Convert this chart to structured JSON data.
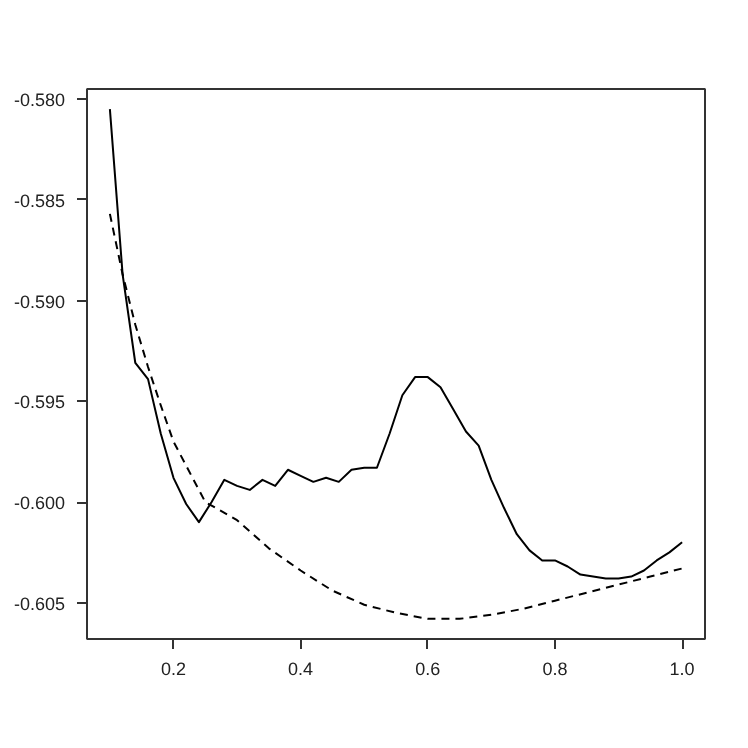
{
  "chart_data": {
    "type": "line",
    "grid": false,
    "xlim": [
      0.064,
      1.036
    ],
    "ylim": [
      -0.6068,
      -0.5795
    ],
    "xticks": [
      {
        "value": 0.2,
        "label": "0.2"
      },
      {
        "value": 0.4,
        "label": "0.4"
      },
      {
        "value": 0.6,
        "label": "0.6"
      },
      {
        "value": 0.8,
        "label": "0.8"
      },
      {
        "value": 1.0,
        "label": "1.0"
      }
    ],
    "yticks": [
      {
        "value": -0.58,
        "label": "-0.580"
      },
      {
        "value": -0.585,
        "label": "-0.585"
      },
      {
        "value": -0.59,
        "label": "-0.590"
      },
      {
        "value": -0.595,
        "label": "-0.595"
      },
      {
        "value": -0.6,
        "label": "-0.600"
      },
      {
        "value": -0.605,
        "label": "-0.605"
      }
    ],
    "series": [
      {
        "color": "#000000",
        "line_style": "solid",
        "x": [
          0.1,
          0.12,
          0.14,
          0.16,
          0.18,
          0.2,
          0.22,
          0.24,
          0.26,
          0.28,
          0.3,
          0.32,
          0.34,
          0.36,
          0.38,
          0.4,
          0.42,
          0.44,
          0.46,
          0.48,
          0.5,
          0.52,
          0.54,
          0.56,
          0.58,
          0.6,
          0.62,
          0.64,
          0.66,
          0.68,
          0.7,
          0.72,
          0.74,
          0.76,
          0.78,
          0.8,
          0.82,
          0.84,
          0.86,
          0.88,
          0.9,
          0.92,
          0.94,
          0.96,
          0.98,
          1.0
        ],
        "values": [
          -0.5805,
          -0.5887,
          -0.5931,
          -0.5939,
          -0.5966,
          -0.5988,
          -0.6001,
          -0.601,
          -0.6,
          -0.5989,
          -0.5992,
          -0.5994,
          -0.5989,
          -0.5992,
          -0.5984,
          -0.5987,
          -0.599,
          -0.5988,
          -0.599,
          -0.5984,
          -0.5983,
          -0.5983,
          -0.5966,
          -0.5947,
          -0.5938,
          -0.5938,
          -0.5943,
          -0.5954,
          -0.5965,
          -0.5972,
          -0.5989,
          -0.6003,
          -0.6016,
          -0.6024,
          -0.6029,
          -0.6029,
          -0.6032,
          -0.6036,
          -0.6037,
          -0.6038,
          -0.6038,
          -0.6037,
          -0.6034,
          -0.6029,
          -0.6025,
          -0.602
        ]
      },
      {
        "color": "#000000",
        "line_style": "dashed",
        "x": [
          0.1,
          0.12,
          0.14,
          0.16,
          0.18,
          0.2,
          0.25,
          0.3,
          0.35,
          0.4,
          0.45,
          0.5,
          0.55,
          0.6,
          0.65,
          0.7,
          0.75,
          0.8,
          0.85,
          0.9,
          0.95,
          1.0
        ],
        "values": [
          -0.5857,
          -0.5887,
          -0.5912,
          -0.5933,
          -0.5952,
          -0.597,
          -0.6,
          -0.6009,
          -0.6023,
          -0.6034,
          -0.6044,
          -0.6051,
          -0.6055,
          -0.6058,
          -0.6058,
          -0.6056,
          -0.6053,
          -0.6049,
          -0.6045,
          -0.6041,
          -0.6037,
          -0.6033
        ]
      }
    ]
  }
}
